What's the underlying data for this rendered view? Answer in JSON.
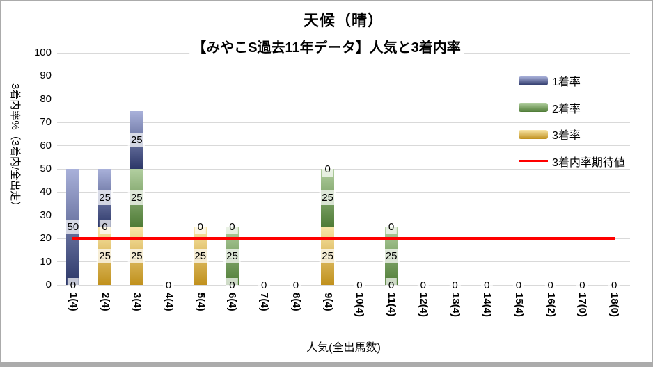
{
  "frame": {
    "background": "#FFFFFF",
    "border_color": "#ABABAB",
    "bottom_strip_color": "#ABABAB"
  },
  "title": {
    "line1": "天候（晴）",
    "line2": "【みやこS過去11年データ】人気と3着内率"
  },
  "chart_data": {
    "type": "bar",
    "stacked": true,
    "title": "天候（晴）",
    "subtitle": "【みやこS過去11年データ】人気と3着内率",
    "xlabel": "人気(全出馬数)",
    "ylabel": "3着内率%（3着内/全出走）",
    "ylim": [
      0,
      100
    ],
    "ytick_step": 10,
    "yticks": [
      0,
      10,
      20,
      30,
      40,
      50,
      60,
      70,
      80,
      90,
      100
    ],
    "grid": true,
    "gridline_color": "#D9D9D9",
    "legend_position": "right-top",
    "categories": [
      "1(4)",
      "2(4)",
      "3(4)",
      "4(4)",
      "5(4)",
      "6(4)",
      "7(4)",
      "8(4)",
      "9(4)",
      "10(4)",
      "11(4)",
      "12(4)",
      "13(4)",
      "14(4)",
      "15(4)",
      "16(2)",
      "17(0)",
      "18(0)"
    ],
    "series": [
      {
        "name": "1着率",
        "color_light": "#A9B1DA",
        "color_dark": "#2C3768",
        "values": [
          50,
          25,
          25,
          0,
          0,
          0,
          0,
          0,
          0,
          0,
          0,
          0,
          0,
          0,
          0,
          0,
          0,
          0
        ]
      },
      {
        "name": "2着率",
        "color_light": "#B2CFA0",
        "color_dark": "#4E7B35",
        "values": [
          0,
          0,
          25,
          0,
          0,
          25,
          0,
          0,
          25,
          0,
          25,
          0,
          0,
          0,
          0,
          0,
          0,
          0
        ]
      },
      {
        "name": "3着率",
        "color_light": "#F9E6A8",
        "color_dark": "#C0901C",
        "values": [
          0,
          25,
          25,
          0,
          25,
          0,
          0,
          0,
          25,
          0,
          0,
          0,
          0,
          0,
          0,
          0,
          0,
          0
        ]
      }
    ],
    "line_series": {
      "name": "3着内率期待値",
      "color": "#FF0000",
      "value": 20
    }
  }
}
